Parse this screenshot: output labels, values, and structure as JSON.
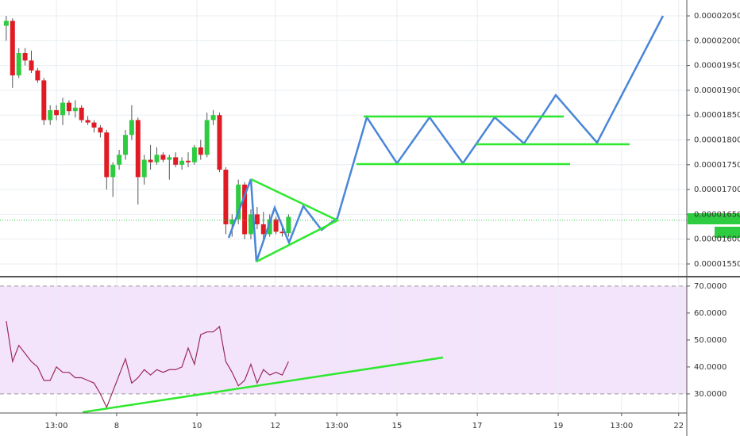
{
  "chart_data": [
    {
      "type": "candlestick",
      "up_color": "#2ecc40",
      "down_color": "#e01b24",
      "wick_color": "#555555",
      "x": [
        1,
        2,
        3,
        4,
        5,
        6,
        7,
        8,
        9,
        10,
        11,
        12,
        13,
        14,
        15,
        16,
        17,
        18,
        19,
        20,
        21,
        22,
        23,
        24,
        25,
        26,
        27,
        28,
        29,
        30,
        31,
        32,
        33,
        34,
        35,
        36,
        37,
        38,
        39,
        40,
        41,
        42,
        43,
        44,
        45,
        46
      ],
      "open": [
        2.03e-05,
        2.04e-05,
        1.93e-05,
        1.975e-05,
        1.96e-05,
        1.94e-05,
        1.92e-05,
        1.84e-05,
        1.86e-05,
        1.85e-05,
        1.875e-05,
        1.858e-05,
        1.865e-05,
        1.84e-05,
        1.835e-05,
        1.825e-05,
        1.815e-05,
        1.725e-05,
        1.75e-05,
        1.77e-05,
        1.81e-05,
        1.84e-05,
        1.725e-05,
        1.76e-05,
        1.755e-05,
        1.77e-05,
        1.76e-05,
        1.765e-05,
        1.75e-05,
        1.758e-05,
        1.755e-05,
        1.785e-05,
        1.77e-05,
        1.84e-05,
        1.85e-05,
        1.74e-05,
        1.63e-05,
        1.64e-05,
        1.71e-05,
        1.61e-05,
        1.65e-05,
        1.63e-05,
        1.61e-05,
        1.64e-05,
        1.615e-05,
        1.612e-05
      ],
      "high": [
        2.05e-05,
        2.045e-05,
        1.985e-05,
        1.985e-05,
        1.98e-05,
        1.945e-05,
        1.925e-05,
        1.87e-05,
        1.87e-05,
        1.885e-05,
        1.88e-05,
        1.88e-05,
        1.87e-05,
        1.848e-05,
        1.84e-05,
        1.83e-05,
        1.82e-05,
        1.755e-05,
        1.78e-05,
        1.82e-05,
        1.87e-05,
        1.845e-05,
        1.77e-05,
        1.79e-05,
        1.785e-05,
        1.775e-05,
        1.77e-05,
        1.775e-05,
        1.765e-05,
        1.775e-05,
        1.79e-05,
        1.8e-05,
        1.855e-05,
        1.86e-05,
        1.855e-05,
        1.745e-05,
        1.65e-05,
        1.72e-05,
        1.715e-05,
        1.66e-05,
        1.665e-05,
        1.655e-05,
        1.65e-05,
        1.645e-05,
        1.625e-05,
        1.65e-05
      ],
      "low": [
        2e-05,
        1.905e-05,
        1.925e-05,
        1.95e-05,
        1.935e-05,
        1.915e-05,
        1.83e-05,
        1.83e-05,
        1.84e-05,
        1.83e-05,
        1.85e-05,
        1.845e-05,
        1.835e-05,
        1.83e-05,
        1.815e-05,
        1.805e-05,
        1.7e-05,
        1.685e-05,
        1.74e-05,
        1.76e-05,
        1.8e-05,
        1.67e-05,
        1.71e-05,
        1.74e-05,
        1.75e-05,
        1.755e-05,
        1.72e-05,
        1.745e-05,
        1.74e-05,
        1.745e-05,
        1.75e-05,
        1.76e-05,
        1.765e-05,
        1.83e-05,
        1.735e-05,
        1.61e-05,
        1.605e-05,
        1.63e-05,
        1.6e-05,
        1.6e-05,
        1.62e-05,
        1.6e-05,
        1.605e-05,
        1.61e-05,
        1.605e-05,
        1.605e-05
      ],
      "close": [
        2.04e-05,
        1.93e-05,
        1.975e-05,
        1.96e-05,
        1.94e-05,
        1.92e-05,
        1.84e-05,
        1.86e-05,
        1.85e-05,
        1.875e-05,
        1.858e-05,
        1.865e-05,
        1.84e-05,
        1.835e-05,
        1.825e-05,
        1.815e-05,
        1.725e-05,
        1.75e-05,
        1.77e-05,
        1.81e-05,
        1.84e-05,
        1.725e-05,
        1.76e-05,
        1.755e-05,
        1.77e-05,
        1.76e-05,
        1.765e-05,
        1.75e-05,
        1.758e-05,
        1.755e-05,
        1.785e-05,
        1.77e-05,
        1.84e-05,
        1.85e-05,
        1.74e-05,
        1.63e-05,
        1.64e-05,
        1.71e-05,
        1.61e-05,
        1.65e-05,
        1.63e-05,
        1.61e-05,
        1.64e-05,
        1.615e-05,
        1.612e-05,
        1.645e-05
      ],
      "price_line": 1.638e-05,
      "price_line_color": "#2ecc40",
      "xlim": [
        0,
        109.5
      ],
      "ylim": [
        1.526e-05,
        2.082e-05
      ],
      "yticks": [
        {
          "value": 1.55e-05,
          "label": "0.00001550"
        },
        {
          "value": 1.6e-05,
          "label": "0.00001600"
        },
        {
          "value": 1.65e-05,
          "label": "0.00001650"
        },
        {
          "value": 1.7e-05,
          "label": "0.00001700"
        },
        {
          "value": 1.75e-05,
          "label": "0.00001750"
        },
        {
          "value": 1.8e-05,
          "label": "0.00001800"
        },
        {
          "value": 1.85e-05,
          "label": "0.00001850"
        },
        {
          "value": 1.9e-05,
          "label": "0.00001900"
        },
        {
          "value": 1.95e-05,
          "label": "0.00001950"
        },
        {
          "value": 2e-05,
          "label": "0.00002000"
        },
        {
          "value": 2.05e-05,
          "label": "0.00002050"
        }
      ],
      "grid": true
    },
    {
      "type": "line",
      "color": "#9c2a5c",
      "band_color": "#f3e4fb",
      "x": [
        1,
        2,
        3,
        4,
        5,
        6,
        7,
        8,
        9,
        10,
        11,
        12,
        13,
        14,
        15,
        16,
        17,
        18,
        19,
        20,
        21,
        22,
        23,
        24,
        25,
        26,
        27,
        28,
        29,
        30,
        31,
        32,
        33,
        34,
        35,
        36,
        37,
        38,
        39,
        40,
        41,
        42,
        43,
        44,
        45,
        46
      ],
      "values": [
        57,
        42,
        48,
        45,
        42,
        40,
        35,
        35,
        40,
        38,
        38,
        36,
        36,
        35,
        34,
        30,
        25,
        31,
        37,
        43,
        34,
        36,
        39,
        37,
        39,
        38,
        39,
        39,
        40,
        47,
        41,
        52,
        53,
        53,
        55,
        42,
        38,
        33,
        35,
        41,
        34,
        39,
        37,
        38,
        37,
        42
      ],
      "xlim": [
        0,
        109.5
      ],
      "ylim": [
        23.2,
        73.2
      ],
      "yticks": [
        {
          "value": 30,
          "label": "30.0000"
        },
        {
          "value": 40,
          "label": "40.0000"
        },
        {
          "value": 50,
          "label": "50.0000"
        },
        {
          "value": 60,
          "label": "60.0000"
        },
        {
          "value": 70,
          "label": "70.0000"
        }
      ],
      "band": [
        30,
        70
      ],
      "xticks": [
        {
          "value": 9,
          "label": "13:00"
        },
        {
          "value": 18.6,
          "label": "8"
        },
        {
          "value": 31.4,
          "label": "10"
        },
        {
          "value": 43.9,
          "label": "12"
        },
        {
          "value": 53.7,
          "label": "13:00"
        },
        {
          "value": 63.3,
          "label": "15"
        },
        {
          "value": 76.1,
          "label": "17"
        },
        {
          "value": 89,
          "label": "19"
        },
        {
          "value": 99.1,
          "label": "13:00"
        },
        {
          "value": 108.2,
          "label": "22"
        }
      ],
      "grid": true
    }
  ]
}
